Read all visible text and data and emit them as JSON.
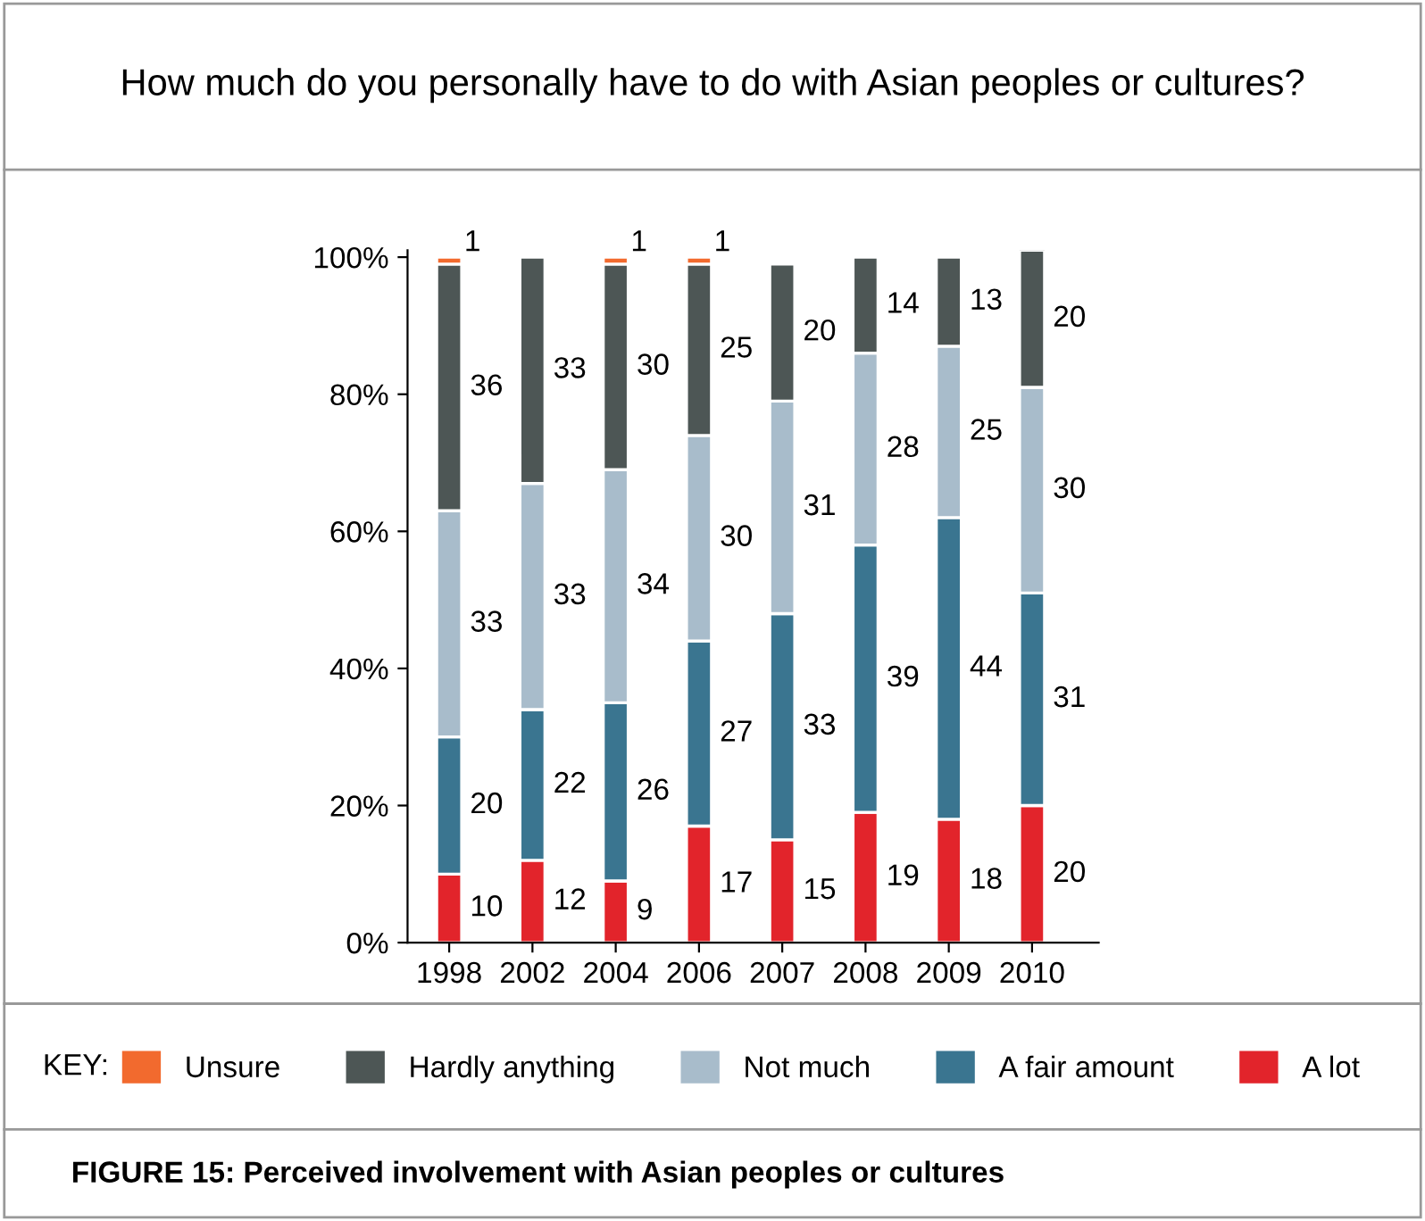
{
  "chart_data": {
    "type": "bar",
    "stacked": true,
    "title": "How much do you personally have to do with Asian peoples or cultures?",
    "categories": [
      "1998",
      "2002",
      "2004",
      "2006",
      "2007",
      "2008",
      "2009",
      "2010"
    ],
    "series": [
      {
        "name": "A lot",
        "color": "#e2242b",
        "values": [
          10,
          12,
          9,
          17,
          15,
          19,
          18,
          20
        ]
      },
      {
        "name": "A fair amount",
        "color": "#3a7590",
        "values": [
          20,
          22,
          26,
          27,
          33,
          39,
          44,
          31
        ]
      },
      {
        "name": "Not much",
        "color": "#a8bccb",
        "values": [
          33,
          33,
          34,
          30,
          31,
          28,
          25,
          30
        ]
      },
      {
        "name": "Hardly anything",
        "color": "#4d5655",
        "values": [
          36,
          33,
          30,
          25,
          20,
          14,
          13,
          20
        ]
      },
      {
        "name": "Unsure",
        "color": "#f26a2e",
        "values": [
          1,
          null,
          1,
          1,
          null,
          null,
          null,
          null
        ]
      }
    ],
    "ylim": [
      0,
      101
    ],
    "yticks": [
      {
        "value": 0,
        "label": "0%"
      },
      {
        "value": 20,
        "label": "20%"
      },
      {
        "value": 40,
        "label": "40%"
      },
      {
        "value": 60,
        "label": "60%"
      },
      {
        "value": 80,
        "label": "80%"
      },
      {
        "value": 100,
        "label": "100%"
      }
    ],
    "data_labels": true,
    "grid": false,
    "legend": "bottom",
    "legend_title": "KEY:",
    "annotations": [
      "FIGURE 15: Perceived involvement with Asian peoples or cultures"
    ]
  }
}
